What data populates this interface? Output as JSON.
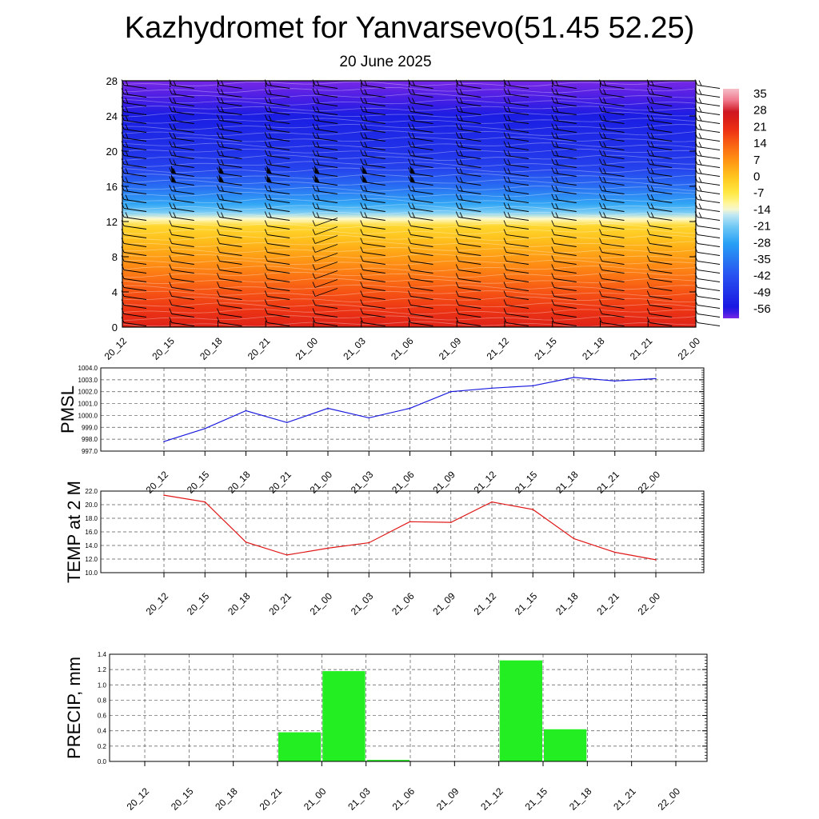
{
  "header": {
    "title": "Kazhydromet for Yanvarsevo(51.45 52.25)",
    "subtitle": "20 June 2025"
  },
  "time_labels": [
    "20_12",
    "20_15",
    "20_18",
    "20_21",
    "21_00",
    "21_03",
    "21_06",
    "21_09",
    "21_12",
    "21_15",
    "21_18",
    "21_21",
    "22_00"
  ],
  "colors": {
    "pmsl_line": "#1a1adf",
    "temp_line": "#e01818",
    "precip_bar": "#22ee22",
    "wind_barb": "#000000"
  },
  "chart_data": [
    {
      "type": "heatmap",
      "name": "upper-air",
      "x": [
        "20_12",
        "20_15",
        "20_18",
        "20_21",
        "21_00",
        "21_03",
        "21_06",
        "21_09",
        "21_12",
        "21_15",
        "21_18",
        "21_21",
        "22_00"
      ],
      "ylim": [
        0,
        28
      ],
      "yticks": [
        0,
        4,
        8,
        12,
        16,
        20,
        24,
        28
      ],
      "grid": false,
      "colorbar": {
        "labels": [
          "35",
          "28",
          "21",
          "14",
          "7",
          "0",
          "-7",
          "-14",
          "-21",
          "-28",
          "-35",
          "-42",
          "-49",
          "-56"
        ],
        "range": [
          -60,
          38
        ],
        "placement": "right"
      },
      "temperature_profile": [
        {
          "level": 0,
          "value": 24
        },
        {
          "level": 2,
          "value": 20
        },
        {
          "level": 4,
          "value": 16
        },
        {
          "level": 6,
          "value": 11
        },
        {
          "level": 8,
          "value": 6
        },
        {
          "level": 10,
          "value": 1
        },
        {
          "level": 11.5,
          "value": -3
        },
        {
          "level": 12.3,
          "value": -13
        },
        {
          "level": 13,
          "value": -20
        },
        {
          "level": 14,
          "value": -27
        },
        {
          "level": 16,
          "value": -37
        },
        {
          "level": 18,
          "value": -45
        },
        {
          "level": 20,
          "value": -49
        },
        {
          "level": 22,
          "value": -51
        },
        {
          "level": 24,
          "value": -54
        },
        {
          "level": 26,
          "value": -58
        },
        {
          "level": 28,
          "value": -60
        }
      ],
      "wind_barbs": {
        "levels": [
          0.5,
          1.5,
          2.5,
          3.5,
          4.5,
          5.5,
          6.5,
          7.5,
          8.5,
          9.5,
          10.5,
          11.5,
          12.5,
          13.5,
          14.5,
          15.5,
          16.5,
          17.5,
          18.5,
          19.5,
          20.5,
          21.5,
          22.5,
          23.5,
          24.5,
          25.5,
          26.5,
          27.5
        ],
        "pennant_times": [
          "20_15",
          "20_18",
          "20_21",
          "21_00",
          "21_03",
          "21_06"
        ],
        "pennant_levels": [
          16.5,
          17.5
        ]
      }
    },
    {
      "type": "line",
      "name": "PMSL",
      "ylabel": "PMSL",
      "x": [
        "20_12",
        "20_15",
        "20_18",
        "20_21",
        "21_00",
        "21_03",
        "21_06",
        "21_09",
        "21_12",
        "21_15",
        "21_18",
        "21_21",
        "22_00"
      ],
      "values": [
        997.8,
        998.9,
        1000.4,
        999.4,
        1000.6,
        999.8,
        1000.6,
        1002.0,
        1002.3,
        1002.5,
        1003.2,
        1002.9,
        1003.1
      ],
      "ylim": [
        997.0,
        1004.0
      ],
      "yticks": [
        "997.0",
        "998.0",
        "999.0",
        "1000.0",
        "1001.0",
        "1002.0",
        "1003.0",
        "1004.0"
      ],
      "grid": true
    },
    {
      "type": "line",
      "name": "TEMP at 2 M",
      "ylabel": "TEMP at 2 M",
      "x": [
        "20_12",
        "20_15",
        "20_18",
        "20_21",
        "21_00",
        "21_03",
        "21_06",
        "21_09",
        "21_12",
        "21_15",
        "21_18",
        "21_21",
        "22_00"
      ],
      "values": [
        21.4,
        20.4,
        14.5,
        12.6,
        13.6,
        14.4,
        17.5,
        17.4,
        20.4,
        19.3,
        15.0,
        13.0,
        11.9
      ],
      "ylim": [
        10.0,
        22.0
      ],
      "yticks": [
        "10.0",
        "12.0",
        "14.0",
        "16.0",
        "18.0",
        "20.0",
        "22.0"
      ],
      "grid": true
    },
    {
      "type": "bar",
      "name": "PRECIP, mm",
      "ylabel": "PRECIP, mm",
      "categories": [
        "20_12",
        "20_15",
        "20_18",
        "20_21",
        "21_00",
        "21_03",
        "21_06",
        "21_09",
        "21_12",
        "21_15",
        "21_18",
        "21_21",
        "22_00"
      ],
      "values": [
        0,
        0,
        0,
        0,
        0.38,
        1.18,
        0.02,
        0,
        0,
        1.32,
        0.42,
        0,
        0
      ],
      "ylim": [
        0.0,
        1.4
      ],
      "yticks": [
        "0.0",
        "0.2",
        "0.4",
        "0.6",
        "0.8",
        "1.0",
        "1.2",
        "1.4"
      ],
      "grid": true
    }
  ]
}
